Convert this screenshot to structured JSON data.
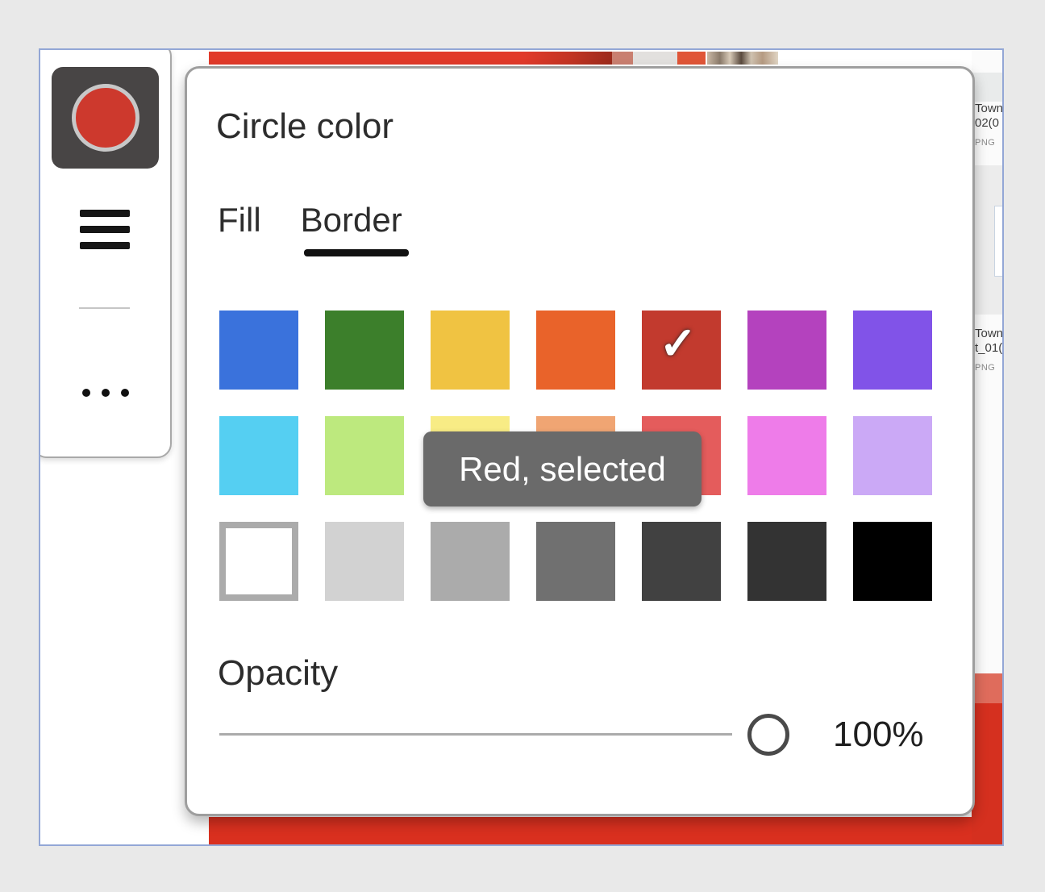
{
  "popup": {
    "title": "Circle color",
    "tabs": [
      {
        "label": "Fill",
        "selected": false
      },
      {
        "label": "Border",
        "selected": true
      }
    ],
    "tooltip": {
      "text": "Red, selected"
    },
    "opacity": {
      "label": "Opacity",
      "value": "100%",
      "percent": 100
    },
    "swatch_rows": [
      [
        {
          "name": "Blue",
          "hex": "#3A72DC",
          "selected": false
        },
        {
          "name": "Green",
          "hex": "#3C7F2B",
          "selected": false
        },
        {
          "name": "Yellow",
          "hex": "#F0C342",
          "selected": false
        },
        {
          "name": "Orange",
          "hex": "#E9632A",
          "selected": false
        },
        {
          "name": "Red",
          "hex": "#C23A2E",
          "selected": true
        },
        {
          "name": "Purple",
          "hex": "#B442BE",
          "selected": false
        },
        {
          "name": "Violet",
          "hex": "#8153E8",
          "selected": false
        }
      ],
      [
        {
          "name": "Cyan",
          "hex": "#55CFF2",
          "selected": false
        },
        {
          "name": "Light green",
          "hex": "#BDE97E",
          "selected": false
        },
        {
          "name": "Light yellow",
          "hex": "#F8EC85",
          "selected": false
        },
        {
          "name": "Peach",
          "hex": "#F0A573",
          "selected": false
        },
        {
          "name": "Light red",
          "hex": "#E45C5C",
          "selected": false
        },
        {
          "name": "Pink",
          "hex": "#EE7CE9",
          "selected": false
        },
        {
          "name": "Lavender",
          "hex": "#CBA9F6",
          "selected": false
        }
      ],
      [
        {
          "name": "White",
          "hex": "#FFFFFF",
          "selected": false
        },
        {
          "name": "Light gray",
          "hex": "#D2D2D2",
          "selected": false
        },
        {
          "name": "Gray",
          "hex": "#ABABAB",
          "selected": false
        },
        {
          "name": "Dark gray",
          "hex": "#707070",
          "selected": false
        },
        {
          "name": "Darker gray",
          "hex": "#414141",
          "selected": false
        },
        {
          "name": "Very dark gray",
          "hex": "#333333",
          "selected": false
        },
        {
          "name": "Black",
          "hex": "#000000",
          "selected": false
        }
      ]
    ]
  },
  "sidebar": {
    "tool_icon": "circle-shape-icon",
    "menu_icon": "hamburger-menu-icon",
    "more_icon": "ellipsis-icon"
  },
  "background": {
    "files": [
      {
        "name_line1": "Town",
        "name_line2": "02(0",
        "type": "PNG"
      },
      {
        "name_line1": "Town",
        "name_line2": "t_01(",
        "type": "PNG"
      }
    ],
    "canvas_red": "#D9301F"
  },
  "colors": {
    "selected_swatch": "#C23A2E",
    "tooltip_bg": "#6A6A6A",
    "tool_circle": "#CD392D",
    "window_border": "#93A7D6"
  }
}
